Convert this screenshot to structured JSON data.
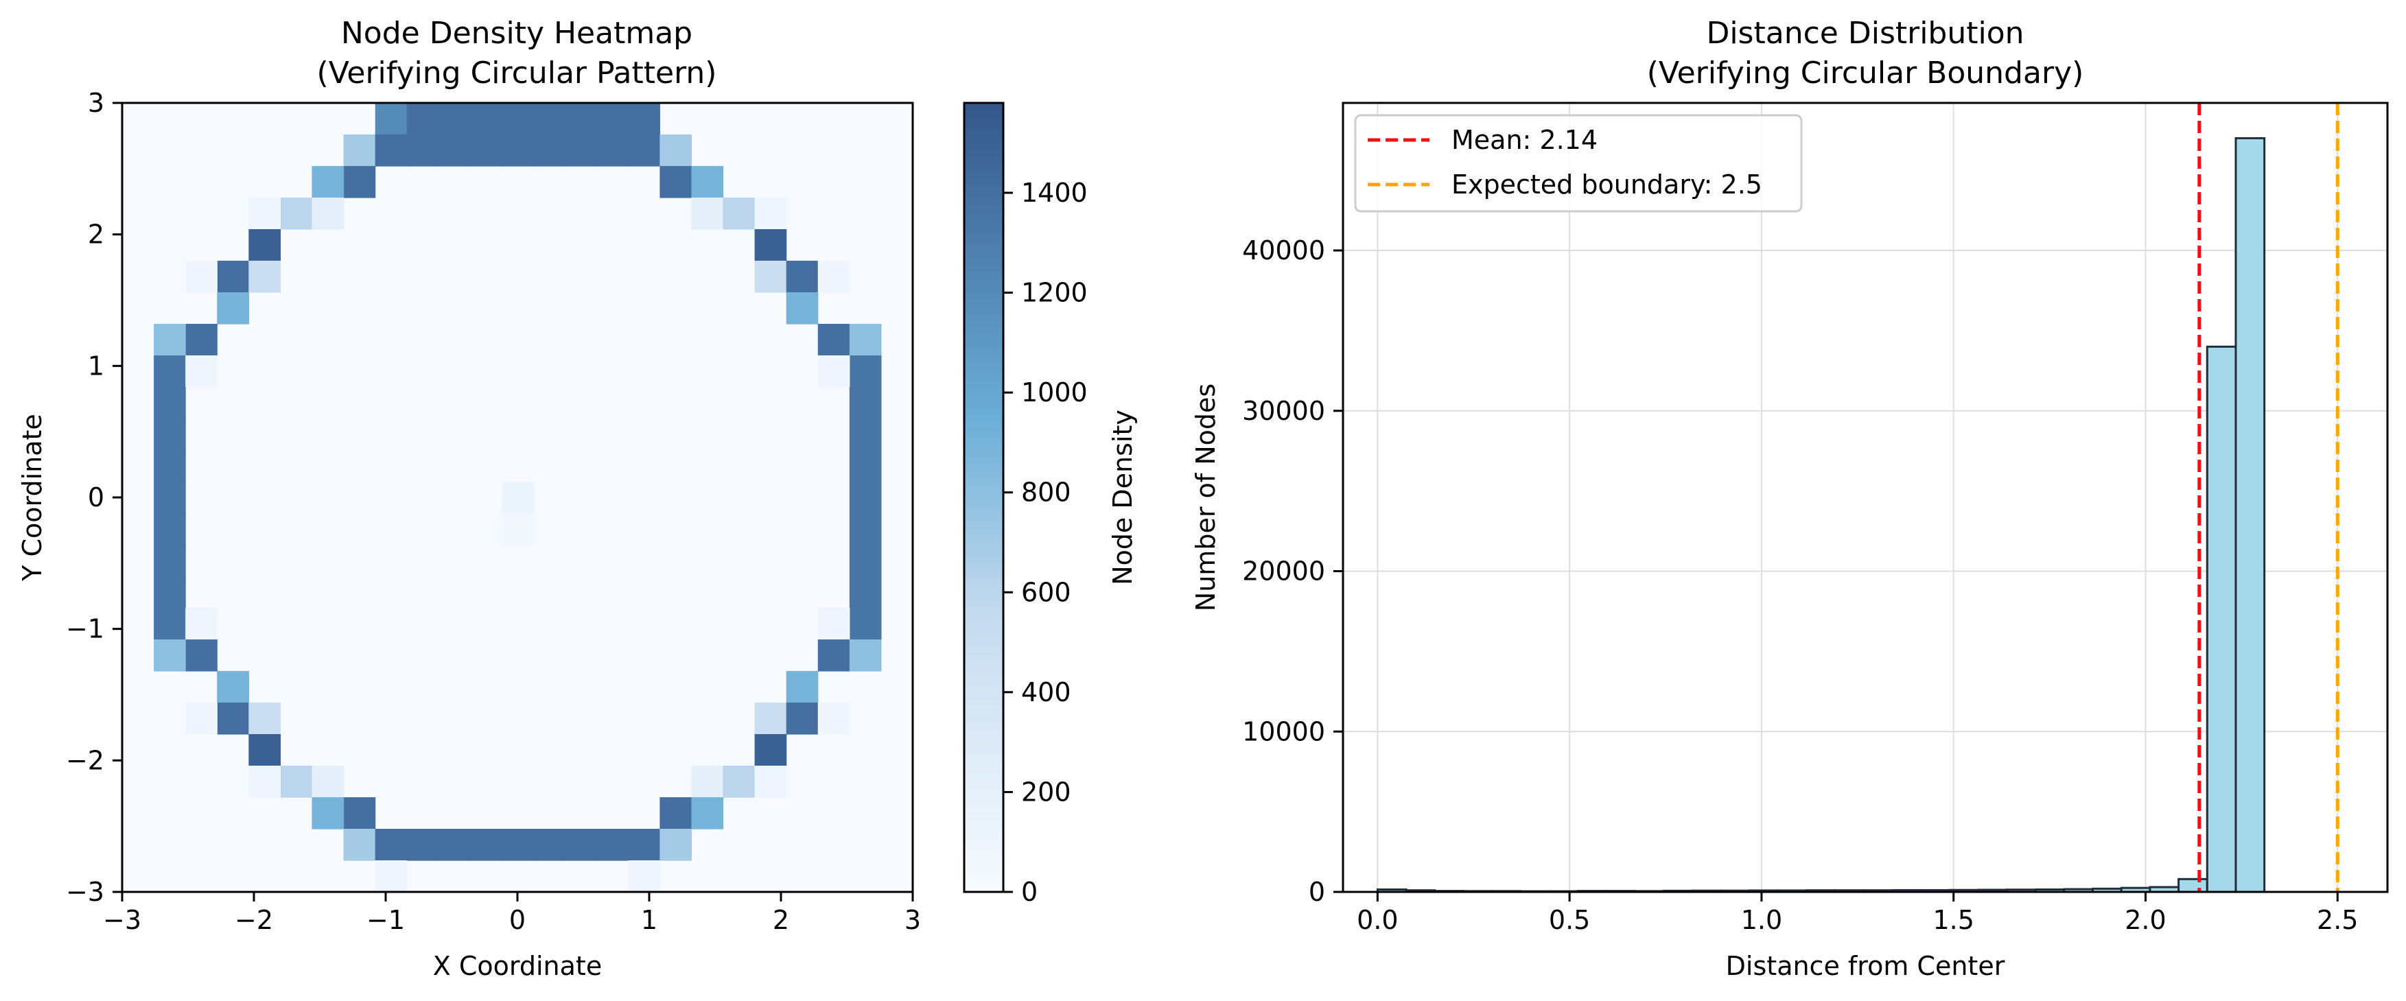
{
  "colors": {
    "heat_low": "#f7fbff",
    "heat_high": "#34568a",
    "bar_fill": "#a6d8ec",
    "bar_edge": "#1f2f3a",
    "mean_line": "#ee1111",
    "boundary_line": "#ffa500",
    "grid": "#dddddd"
  },
  "chart_data": [
    {
      "type": "heatmap",
      "title": "Node Density Heatmap",
      "subtitle": "(Verifying Circular Pattern)",
      "xlabel": "X Coordinate",
      "ylabel": "Y Coordinate",
      "xlim": [
        -3,
        3
      ],
      "ylim": [
        -3,
        3
      ],
      "xticks": [
        "−3",
        "−2",
        "−1",
        "0",
        "1",
        "2",
        "3"
      ],
      "yticks": [
        "−3",
        "−2",
        "−1",
        "0",
        "1",
        "2",
        "3"
      ],
      "bins": 25,
      "colorbar": {
        "label": "Node Density",
        "range": [
          0,
          1580
        ],
        "ticks": [
          "0",
          "200",
          "400",
          "600",
          "800",
          "1000",
          "1200",
          "1400"
        ]
      },
      "cells": [
        [
          0,
          8,
          1200
        ],
        [
          0,
          9,
          1400
        ],
        [
          0,
          10,
          1400
        ],
        [
          0,
          11,
          1400
        ],
        [
          0,
          12,
          1400
        ],
        [
          0,
          13,
          1400
        ],
        [
          0,
          14,
          1400
        ],
        [
          0,
          15,
          1400
        ],
        [
          0,
          16,
          1400
        ],
        [
          1,
          7,
          700
        ],
        [
          1,
          8,
          1400
        ],
        [
          1,
          9,
          1400
        ],
        [
          1,
          10,
          1400
        ],
        [
          1,
          11,
          1400
        ],
        [
          1,
          12,
          1400
        ],
        [
          1,
          13,
          1400
        ],
        [
          1,
          14,
          1400
        ],
        [
          1,
          15,
          1400
        ],
        [
          1,
          16,
          1400
        ],
        [
          1,
          17,
          700
        ],
        [
          2,
          7,
          1400
        ],
        [
          2,
          17,
          1400
        ],
        [
          2,
          6,
          900
        ],
        [
          2,
          18,
          900
        ],
        [
          3,
          5,
          600
        ],
        [
          3,
          6,
          200
        ],
        [
          3,
          18,
          200
        ],
        [
          3,
          19,
          600
        ],
        [
          3,
          4,
          80
        ],
        [
          3,
          20,
          80
        ],
        [
          4,
          4,
          1500
        ],
        [
          4,
          20,
          1500
        ],
        [
          5,
          3,
          1400
        ],
        [
          5,
          4,
          500
        ],
        [
          5,
          20,
          500
        ],
        [
          5,
          21,
          1400
        ],
        [
          5,
          2,
          80
        ],
        [
          5,
          22,
          80
        ],
        [
          6,
          3,
          900
        ],
        [
          6,
          21,
          900
        ],
        [
          7,
          2,
          1400
        ],
        [
          7,
          22,
          1400
        ],
        [
          7,
          1,
          800
        ],
        [
          7,
          23,
          800
        ],
        [
          8,
          1,
          1350
        ],
        [
          8,
          23,
          1350
        ],
        [
          8,
          2,
          100
        ],
        [
          8,
          22,
          100
        ],
        [
          9,
          1,
          1350
        ],
        [
          9,
          23,
          1350
        ],
        [
          10,
          1,
          1350
        ],
        [
          10,
          23,
          1350
        ],
        [
          11,
          1,
          1350
        ],
        [
          11,
          23,
          1350
        ],
        [
          12,
          1,
          1350
        ],
        [
          12,
          23,
          1350
        ],
        [
          12,
          12,
          120
        ],
        [
          13,
          1,
          1350
        ],
        [
          13,
          23,
          1350
        ],
        [
          13,
          12,
          60
        ],
        [
          14,
          1,
          1350
        ],
        [
          14,
          23,
          1350
        ],
        [
          15,
          1,
          1350
        ],
        [
          15,
          23,
          1350
        ],
        [
          16,
          1,
          1350
        ],
        [
          16,
          23,
          1350
        ],
        [
          16,
          2,
          100
        ],
        [
          16,
          22,
          100
        ],
        [
          17,
          2,
          1400
        ],
        [
          17,
          22,
          1400
        ],
        [
          17,
          1,
          800
        ],
        [
          17,
          23,
          800
        ],
        [
          18,
          3,
          900
        ],
        [
          18,
          21,
          900
        ],
        [
          19,
          3,
          1400
        ],
        [
          19,
          4,
          500
        ],
        [
          19,
          20,
          500
        ],
        [
          19,
          21,
          1400
        ],
        [
          19,
          2,
          80
        ],
        [
          19,
          22,
          80
        ],
        [
          20,
          4,
          1500
        ],
        [
          20,
          20,
          1500
        ],
        [
          21,
          5,
          600
        ],
        [
          21,
          6,
          200
        ],
        [
          21,
          18,
          200
        ],
        [
          21,
          19,
          600
        ],
        [
          21,
          4,
          80
        ],
        [
          21,
          20,
          80
        ],
        [
          22,
          7,
          1400
        ],
        [
          22,
          17,
          1400
        ],
        [
          22,
          6,
          900
        ],
        [
          22,
          18,
          900
        ],
        [
          23,
          7,
          700
        ],
        [
          23,
          8,
          1400
        ],
        [
          23,
          9,
          1400
        ],
        [
          23,
          10,
          1400
        ],
        [
          23,
          11,
          1400
        ],
        [
          23,
          12,
          1400
        ],
        [
          23,
          13,
          1400
        ],
        [
          23,
          14,
          1400
        ],
        [
          23,
          15,
          1400
        ],
        [
          23,
          16,
          1400
        ],
        [
          23,
          17,
          700
        ],
        [
          24,
          8,
          100
        ],
        [
          24,
          16,
          100
        ]
      ]
    },
    {
      "type": "bar",
      "title": "Distance Distribution",
      "subtitle": "(Verifying Circular Boundary)",
      "xlabel": "Distance from Center",
      "ylabel": "Number of Nodes",
      "xlim": [
        -0.09,
        2.63
      ],
      "ylim": [
        0,
        49200
      ],
      "xticks": [
        {
          "value": 0.0,
          "label": "0.0"
        },
        {
          "value": 0.5,
          "label": "0.5"
        },
        {
          "value": 1.0,
          "label": "1.0"
        },
        {
          "value": 1.5,
          "label": "1.5"
        },
        {
          "value": 2.0,
          "label": "2.0"
        },
        {
          "value": 2.5,
          "label": "2.5"
        }
      ],
      "yticks": [
        {
          "value": 0,
          "label": "0"
        },
        {
          "value": 10000,
          "label": "10000"
        },
        {
          "value": 20000,
          "label": "20000"
        },
        {
          "value": 30000,
          "label": "30000"
        },
        {
          "value": 40000,
          "label": "40000"
        }
      ],
      "bin_start": 0.0,
      "bin_width": 0.0745,
      "values": [
        150,
        100,
        60,
        50,
        50,
        40,
        40,
        60,
        60,
        50,
        70,
        80,
        80,
        90,
        90,
        100,
        100,
        100,
        110,
        110,
        120,
        130,
        140,
        150,
        170,
        200,
        250,
        300,
        800,
        34000,
        47000
      ],
      "legend": [
        {
          "label": "Mean: 2.14",
          "value": 2.14,
          "color_key": "mean_line"
        },
        {
          "label": "Expected boundary: 2.5",
          "value": 2.5,
          "color_key": "boundary_line"
        }
      ],
      "legend_position": "upper-left",
      "grid": true
    }
  ]
}
